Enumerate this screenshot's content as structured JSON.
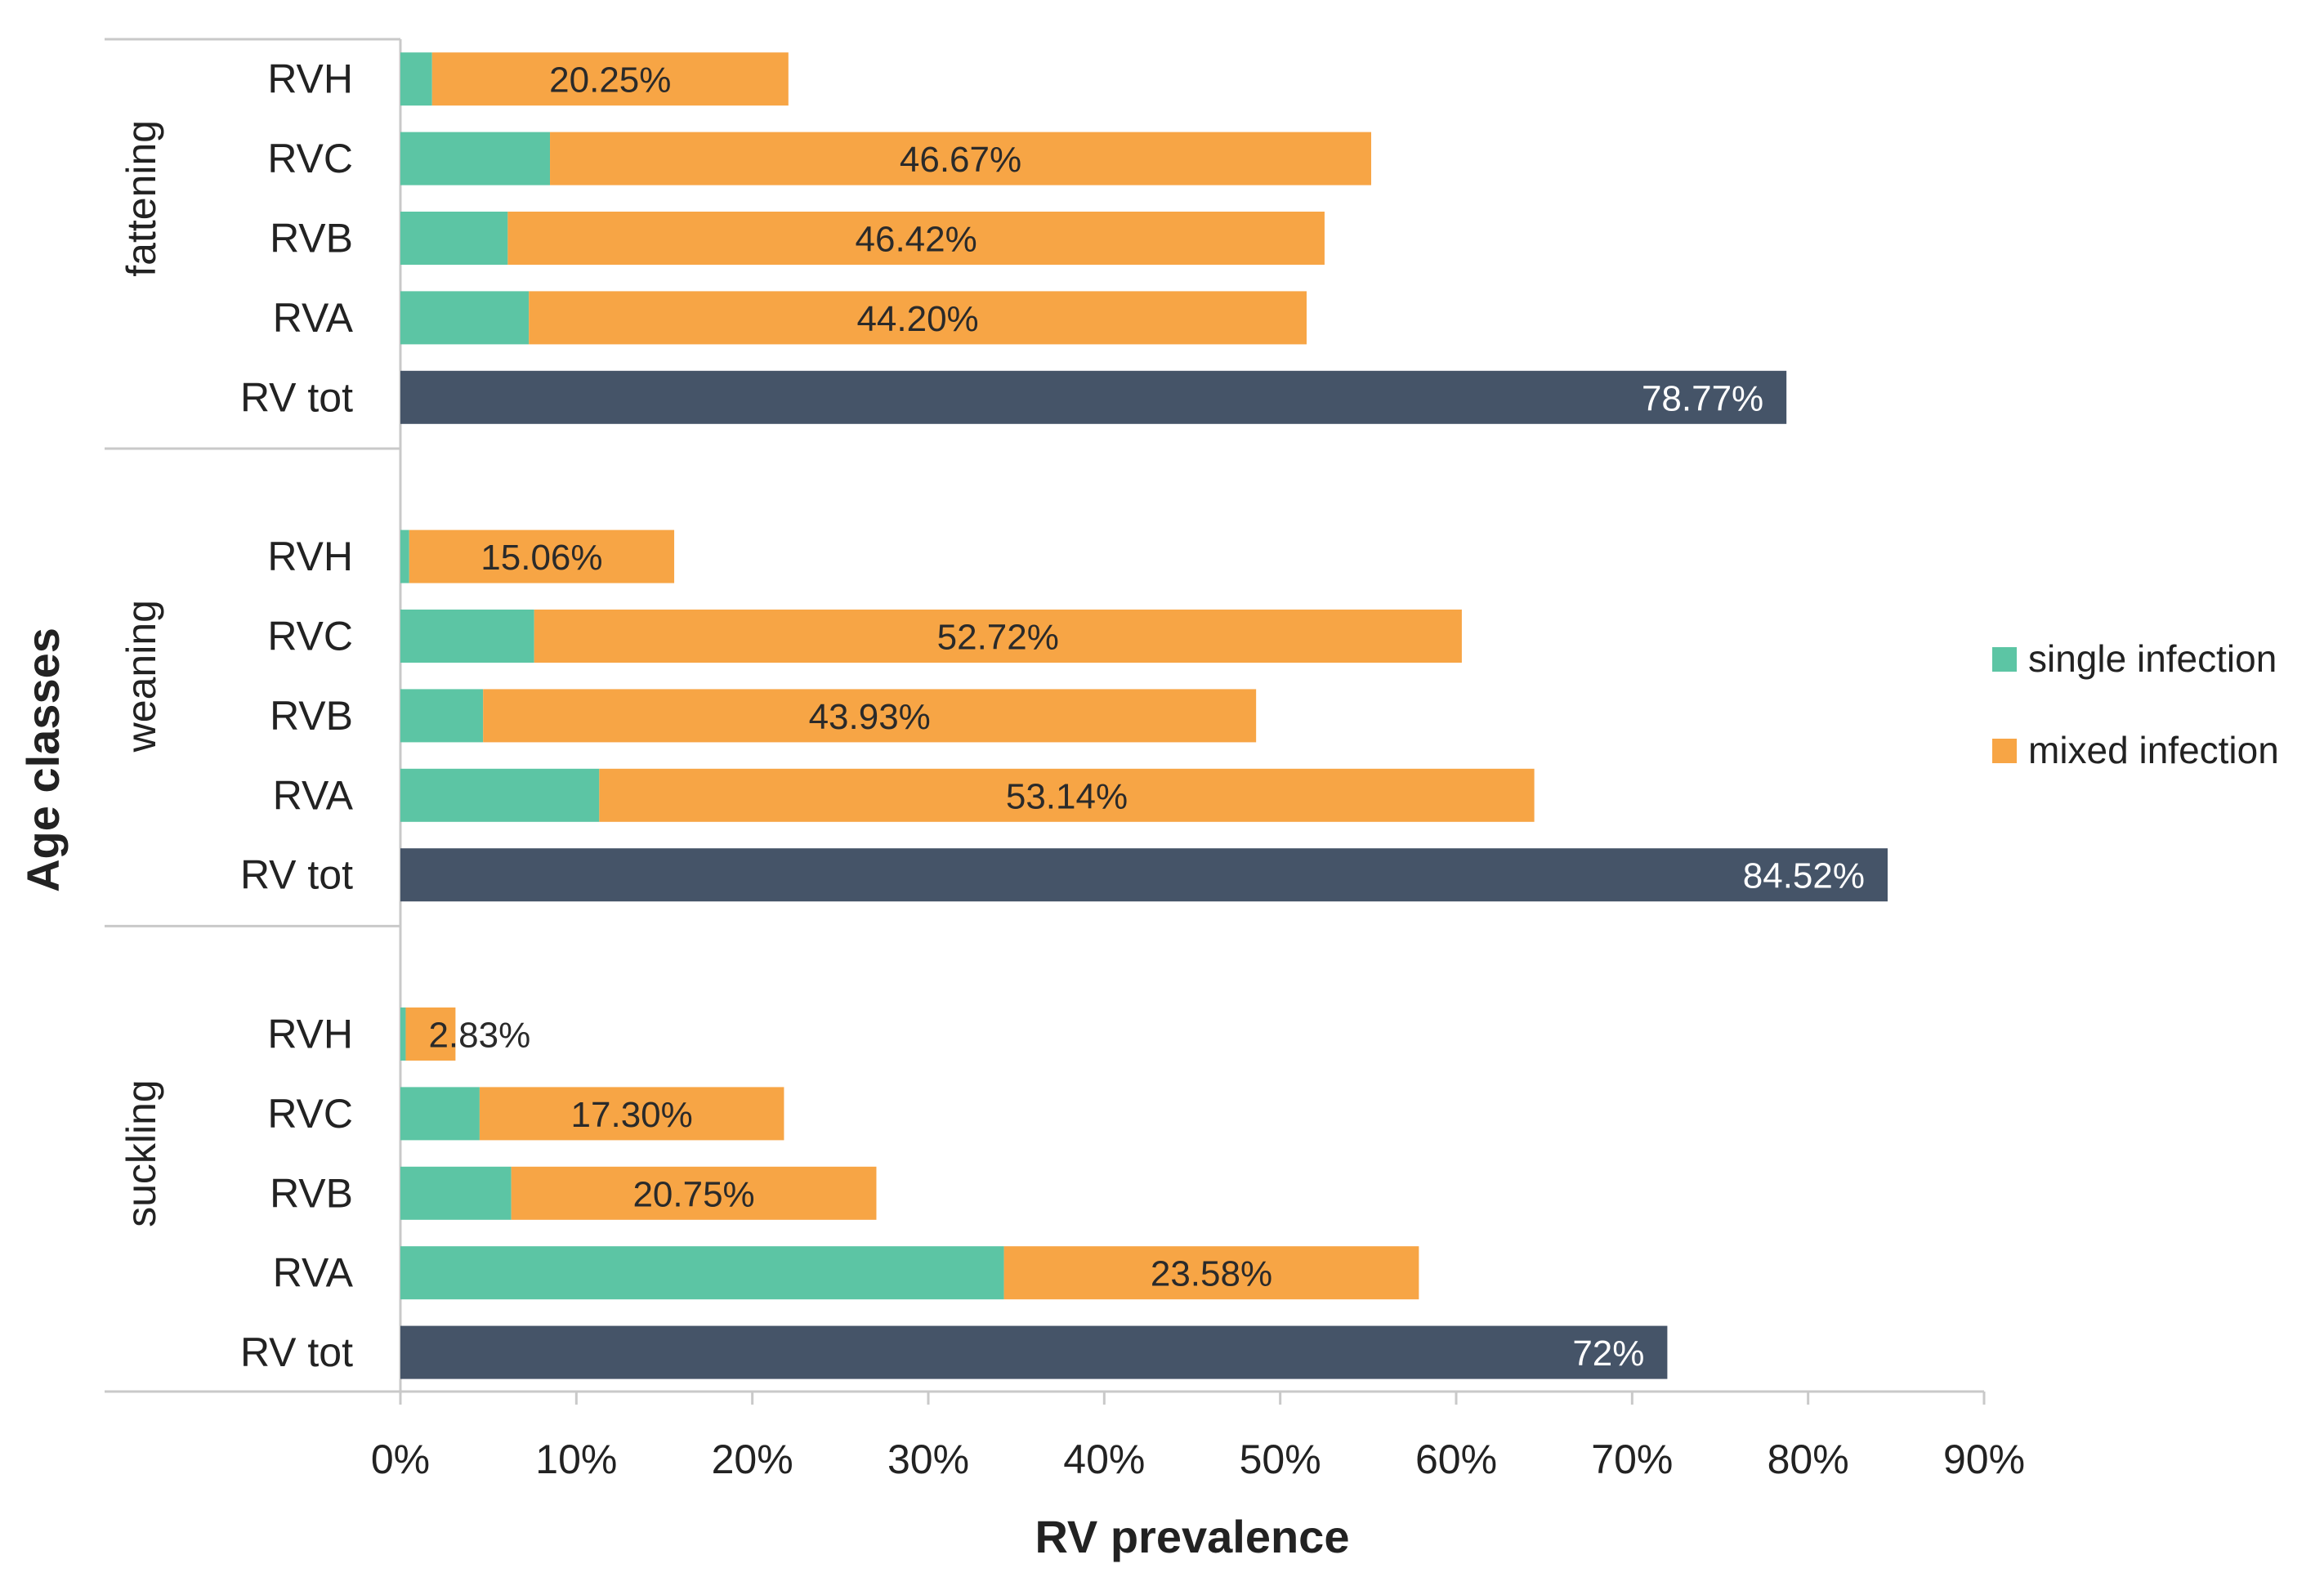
{
  "chart_data": {
    "type": "bar",
    "orientation": "horizontal",
    "stacked": true,
    "xlabel": "RV prevalence",
    "ylabel": "Age classes",
    "xlim": [
      0,
      90
    ],
    "xticks": [
      "0%",
      "10%",
      "20%",
      "30%",
      "40%",
      "50%",
      "60%",
      "70%",
      "80%",
      "90%"
    ],
    "grid": false,
    "legend_position": "right",
    "series": [
      {
        "name": "single infection",
        "color": "#5cc5a4"
      },
      {
        "name": "mixed infection",
        "color": "#f7a545"
      },
      {
        "name": "RV tot",
        "color": "#455468"
      }
    ],
    "groups": [
      {
        "name": "fattening",
        "bars": [
          {
            "label": "RVH",
            "single": 1.8,
            "mixed": 20.25,
            "value_label": "20.25%"
          },
          {
            "label": "RVC",
            "single": 8.5,
            "mixed": 46.67,
            "value_label": "46.67%"
          },
          {
            "label": "RVB",
            "single": 6.1,
            "mixed": 46.42,
            "value_label": "46.42%"
          },
          {
            "label": "RVA",
            "single": 7.3,
            "mixed": 44.2,
            "value_label": "44.20%"
          },
          {
            "label": "RV tot",
            "total": 78.77,
            "value_label": "78.77%"
          }
        ]
      },
      {
        "name": "weaning",
        "bars": [
          {
            "label": "RVH",
            "single": 0.5,
            "mixed": 15.06,
            "value_label": "15.06%"
          },
          {
            "label": "RVC",
            "single": 7.6,
            "mixed": 52.72,
            "value_label": "52.72%"
          },
          {
            "label": "RVB",
            "single": 4.7,
            "mixed": 43.93,
            "value_label": "43.93%"
          },
          {
            "label": "RVA",
            "single": 11.3,
            "mixed": 53.14,
            "value_label": "53.14%"
          },
          {
            "label": "RV tot",
            "total": 84.52,
            "value_label": "84.52%"
          }
        ]
      },
      {
        "name": "suckling",
        "bars": [
          {
            "label": "RVH",
            "single": 0.3,
            "mixed": 2.83,
            "value_label": "2.83%"
          },
          {
            "label": "RVC",
            "single": 4.5,
            "mixed": 17.3,
            "value_label": "17.30%"
          },
          {
            "label": "RVB",
            "single": 6.3,
            "mixed": 20.75,
            "value_label": "20.75%"
          },
          {
            "label": "RVA",
            "single": 34.3,
            "mixed": 23.58,
            "value_label": "23.58%"
          },
          {
            "label": "RV tot",
            "total": 72,
            "value_label": "72%"
          }
        ]
      }
    ]
  }
}
